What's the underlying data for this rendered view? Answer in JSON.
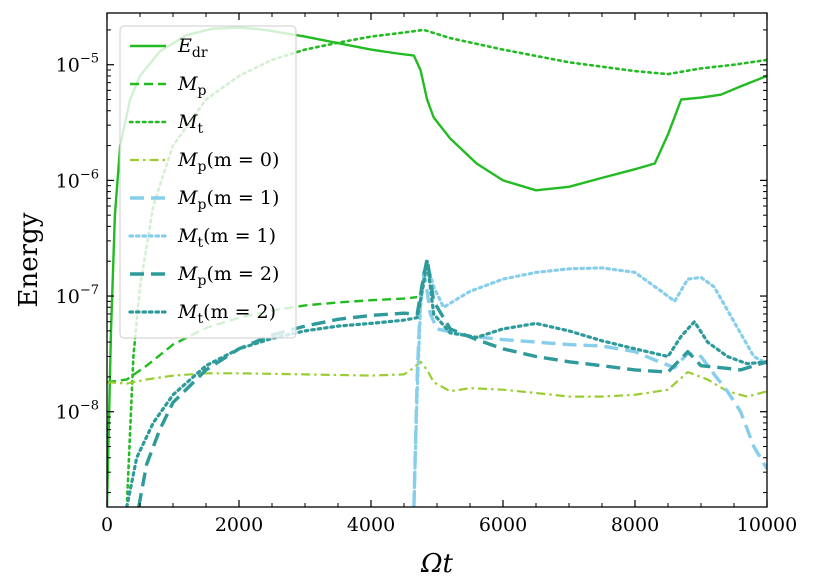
{
  "chart_data": {
    "type": "line",
    "title": "",
    "xlabel": "Ωt",
    "ylabel": "Energy",
    "xlim": [
      0,
      10000
    ],
    "ylim": [
      1.5e-09,
      2.8e-05
    ],
    "yscale": "log",
    "grid": false,
    "legend_position": "top-left",
    "x_ticks": [
      0,
      2000,
      4000,
      6000,
      8000,
      10000
    ],
    "x_tick_labels": [
      "0",
      "2000",
      "4000",
      "6000",
      "8000",
      "10000"
    ],
    "y_ticks": [
      1e-08,
      1e-07,
      1e-06,
      1e-05
    ],
    "y_tick_labels": [
      {
        "base": "10",
        "exp": "−8"
      },
      {
        "base": "10",
        "exp": "−7"
      },
      {
        "base": "10",
        "exp": "−6"
      },
      {
        "base": "10",
        "exp": "−5"
      }
    ],
    "series": [
      {
        "name": "E_dr",
        "label_main": "E",
        "label_sub": "dr",
        "label_tail": "",
        "color": "#22bb22",
        "style": "solid",
        "width": 2.4,
        "points": [
          [
            0,
            1.5e-09
          ],
          [
            60,
            5e-08
          ],
          [
            120,
            5e-07
          ],
          [
            200,
            2e-06
          ],
          [
            350,
            5e-06
          ],
          [
            500,
            8e-06
          ],
          [
            800,
            1.3e-05
          ],
          [
            1200,
            1.8e-05
          ],
          [
            1600,
            2.05e-05
          ],
          [
            2000,
            2.1e-05
          ],
          [
            2400,
            2e-05
          ],
          [
            3000,
            1.75e-05
          ],
          [
            3600,
            1.5e-05
          ],
          [
            4000,
            1.35e-05
          ],
          [
            4400,
            1.25e-05
          ],
          [
            4650,
            1.2e-05
          ],
          [
            4750,
            9e-06
          ],
          [
            4850,
            5e-06
          ],
          [
            4950,
            3.5e-06
          ],
          [
            5200,
            2.3e-06
          ],
          [
            5600,
            1.4e-06
          ],
          [
            6000,
            1e-06
          ],
          [
            6500,
            8.2e-07
          ],
          [
            7000,
            8.8e-07
          ],
          [
            7500,
            1.05e-06
          ],
          [
            8000,
            1.25e-06
          ],
          [
            8300,
            1.4e-06
          ],
          [
            8500,
            2.5e-06
          ],
          [
            8700,
            5e-06
          ],
          [
            9000,
            5.2e-06
          ],
          [
            9300,
            5.5e-06
          ],
          [
            9600,
            6.5e-06
          ],
          [
            10000,
            8e-06
          ]
        ]
      },
      {
        "name": "M_p",
        "label_main": "M",
        "label_sub": "p",
        "label_tail": "",
        "color": "#22bb22",
        "style": "dashed",
        "width": 2.4,
        "points": [
          [
            0,
            1.8e-08
          ],
          [
            300,
            1.9e-08
          ],
          [
            600,
            2.5e-08
          ],
          [
            1000,
            3.8e-08
          ],
          [
            1500,
            5.3e-08
          ],
          [
            2000,
            6.5e-08
          ],
          [
            2500,
            7.5e-08
          ],
          [
            3000,
            8.3e-08
          ],
          [
            3500,
            8.8e-08
          ],
          [
            4000,
            9.2e-08
          ],
          [
            4500,
            9.5e-08
          ],
          [
            4700,
            9.8e-08
          ]
        ]
      },
      {
        "name": "M_t",
        "label_main": "M",
        "label_sub": "t",
        "label_tail": "",
        "color": "#22bb22",
        "style": "dotted",
        "width": 2.6,
        "points": [
          [
            300,
            1.5e-09
          ],
          [
            400,
            3e-08
          ],
          [
            500,
            1.2e-07
          ],
          [
            700,
            6e-07
          ],
          [
            1000,
            2e-06
          ],
          [
            1500,
            5e-06
          ],
          [
            2000,
            8e-06
          ],
          [
            2500,
            1.1e-05
          ],
          [
            3000,
            1.35e-05
          ],
          [
            3500,
            1.55e-05
          ],
          [
            4000,
            1.75e-05
          ],
          [
            4500,
            1.9e-05
          ],
          [
            4800,
            2e-05
          ],
          [
            5200,
            1.7e-05
          ],
          [
            6000,
            1.35e-05
          ],
          [
            7000,
            1.05e-05
          ],
          [
            8000,
            8.8e-06
          ],
          [
            8500,
            8.3e-06
          ],
          [
            9000,
            9.3e-06
          ],
          [
            9500,
            1e-05
          ],
          [
            10000,
            1.1e-05
          ]
        ]
      },
      {
        "name": "M_p(m=0)",
        "label_main": "M",
        "label_sub": "p",
        "label_tail": "(m = 0)",
        "color": "#9acd32",
        "style": "dashdot",
        "width": 2.2,
        "points": [
          [
            0,
            1.8e-08
          ],
          [
            300,
            1.75e-08
          ],
          [
            600,
            1.9e-08
          ],
          [
            1000,
            2.05e-08
          ],
          [
            1500,
            2.15e-08
          ],
          [
            2000,
            2.15e-08
          ],
          [
            3000,
            2.1e-08
          ],
          [
            4000,
            2.05e-08
          ],
          [
            4500,
            2.1e-08
          ],
          [
            4650,
            2.4e-08
          ],
          [
            4750,
            2.7e-08
          ],
          [
            4850,
            2.3e-08
          ],
          [
            4950,
            1.8e-08
          ],
          [
            5200,
            1.5e-08
          ],
          [
            5500,
            1.6e-08
          ],
          [
            6000,
            1.55e-08
          ],
          [
            6500,
            1.45e-08
          ],
          [
            7000,
            1.35e-08
          ],
          [
            7500,
            1.35e-08
          ],
          [
            8000,
            1.4e-08
          ],
          [
            8500,
            1.55e-08
          ],
          [
            8800,
            2.2e-08
          ],
          [
            9100,
            1.9e-08
          ],
          [
            9400,
            1.5e-08
          ],
          [
            9700,
            1.35e-08
          ],
          [
            10000,
            1.5e-08
          ]
        ]
      },
      {
        "name": "M_p(m=1)",
        "label_main": "M",
        "label_sub": "p",
        "label_tail": "(m = 1)",
        "color": "#87ceeb",
        "style": "longdash",
        "width": 3.4,
        "points": [
          [
            4650,
            1.5e-09
          ],
          [
            4700,
            2e-08
          ],
          [
            4750,
            1e-07
          ],
          [
            4800,
            1.6e-07
          ],
          [
            4850,
            1.1e-07
          ],
          [
            4900,
            7e-08
          ],
          [
            5000,
            5.2e-08
          ],
          [
            5500,
            4.5e-08
          ],
          [
            6000,
            4.2e-08
          ],
          [
            6500,
            4e-08
          ],
          [
            7000,
            3.8e-08
          ],
          [
            7500,
            3.7e-08
          ],
          [
            8000,
            3.3e-08
          ],
          [
            8300,
            2.8e-08
          ],
          [
            8600,
            2.4e-08
          ],
          [
            8800,
            3.2e-08
          ],
          [
            9000,
            3e-08
          ],
          [
            9200,
            2.1e-08
          ],
          [
            9400,
            1.5e-08
          ],
          [
            9600,
            1e-08
          ],
          [
            9800,
            5e-09
          ],
          [
            10000,
            3.2e-09
          ]
        ]
      },
      {
        "name": "M_t(m=1)",
        "label_main": "M",
        "label_sub": "t",
        "label_tail": "(m = 1)",
        "color": "#87ceeb",
        "style": "dotted",
        "width": 3.2,
        "points": [
          [
            4650,
            1.5e-09
          ],
          [
            4700,
            1.5e-08
          ],
          [
            4750,
            8e-08
          ],
          [
            4800,
            1.5e-07
          ],
          [
            4850,
            1.9e-07
          ],
          [
            4950,
            1.2e-07
          ],
          [
            5100,
            8e-08
          ],
          [
            5500,
            1.1e-07
          ],
          [
            6000,
            1.4e-07
          ],
          [
            6500,
            1.6e-07
          ],
          [
            7000,
            1.72e-07
          ],
          [
            7500,
            1.75e-07
          ],
          [
            8000,
            1.6e-07
          ],
          [
            8400,
            1.1e-07
          ],
          [
            8600,
            9e-08
          ],
          [
            8800,
            1.4e-07
          ],
          [
            9000,
            1.45e-07
          ],
          [
            9200,
            1.2e-07
          ],
          [
            9500,
            6e-08
          ],
          [
            9800,
            3e-08
          ],
          [
            10000,
            2.6e-08
          ]
        ]
      },
      {
        "name": "M_p(m=2)",
        "label_main": "M",
        "label_sub": "p",
        "label_tail": "(m = 2)",
        "color": "#2e9a9a",
        "style": "longdash",
        "width": 3.4,
        "points": [
          [
            480,
            1.5e-09
          ],
          [
            600,
            3.5e-09
          ],
          [
            800,
            7e-09
          ],
          [
            1000,
            1.2e-08
          ],
          [
            1500,
            2.3e-08
          ],
          [
            2000,
            3.5e-08
          ],
          [
            2500,
            4.6e-08
          ],
          [
            3000,
            5.5e-08
          ],
          [
            3500,
            6.3e-08
          ],
          [
            4000,
            6.8e-08
          ],
          [
            4500,
            7.1e-08
          ],
          [
            4700,
            7e-08
          ],
          [
            4800,
            1.5e-07
          ],
          [
            4850,
            2.1e-07
          ],
          [
            4950,
            9e-08
          ],
          [
            5200,
            5.2e-08
          ],
          [
            5600,
            4.2e-08
          ],
          [
            6000,
            3.5e-08
          ],
          [
            6500,
            3e-08
          ],
          [
            7000,
            2.7e-08
          ],
          [
            7500,
            2.5e-08
          ],
          [
            8000,
            2.3e-08
          ],
          [
            8500,
            2.2e-08
          ],
          [
            8800,
            3.3e-08
          ],
          [
            9000,
            2.5e-08
          ],
          [
            9300,
            2.4e-08
          ],
          [
            9600,
            2.3e-08
          ],
          [
            10000,
            2.7e-08
          ]
        ]
      },
      {
        "name": "M_t(m=2)",
        "label_main": "M",
        "label_sub": "t",
        "label_tail": "(m = 2)",
        "color": "#2e9a9a",
        "style": "dotted",
        "width": 3.2,
        "points": [
          [
            300,
            1.5e-09
          ],
          [
            450,
            4e-09
          ],
          [
            700,
            8e-09
          ],
          [
            1000,
            1.4e-08
          ],
          [
            1500,
            2.5e-08
          ],
          [
            2000,
            3.5e-08
          ],
          [
            2500,
            4.3e-08
          ],
          [
            3000,
            5e-08
          ],
          [
            3500,
            5.5e-08
          ],
          [
            4000,
            5.8e-08
          ],
          [
            4500,
            6.2e-08
          ],
          [
            4700,
            6.5e-08
          ],
          [
            4800,
            1.3e-07
          ],
          [
            4850,
            2e-07
          ],
          [
            4950,
            7e-08
          ],
          [
            5200,
            4.8e-08
          ],
          [
            5600,
            4.4e-08
          ],
          [
            6000,
            5.2e-08
          ],
          [
            6500,
            5.8e-08
          ],
          [
            7000,
            5e-08
          ],
          [
            7500,
            4.1e-08
          ],
          [
            8000,
            3.5e-08
          ],
          [
            8500,
            3e-08
          ],
          [
            8700,
            4.5e-08
          ],
          [
            8900,
            6e-08
          ],
          [
            9100,
            4e-08
          ],
          [
            9400,
            3e-08
          ],
          [
            9700,
            2.6e-08
          ],
          [
            10000,
            2.7e-08
          ]
        ]
      }
    ]
  }
}
